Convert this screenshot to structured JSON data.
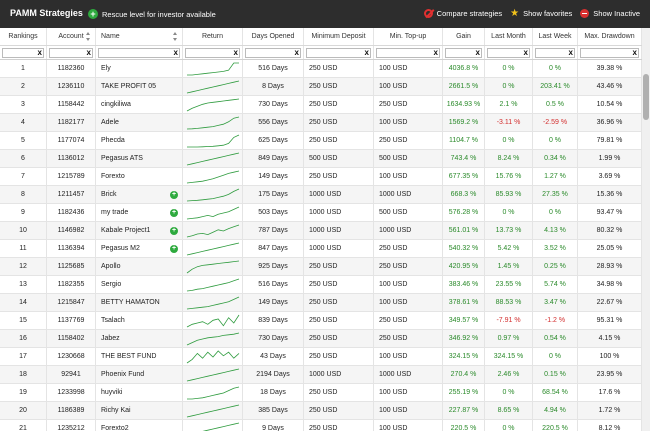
{
  "header": {
    "title": "PAMM Strategies",
    "rescue_label": "Rescue level for investor available",
    "compare_label": "Compare strategies",
    "favorites_label": "Show favorites",
    "inactive_label": "Show Inactive"
  },
  "columns": [
    "Rankings",
    "Account",
    "Name",
    "Return",
    "Days Opened",
    "Minimum Deposit",
    "Min. Top-up",
    "Gain",
    "Last Month",
    "Last Week",
    "Max. Drawdown"
  ],
  "filter_clear": "x",
  "colors": {
    "header_bg": "#2d2d2d",
    "positive": "#2a8a2a",
    "negative": "#d32f2f",
    "rescue_icon": "#2eaa3e",
    "spark": "#2e9b3e"
  },
  "rows": [
    {
      "rank": "1",
      "account": "1182360",
      "name": "Ely",
      "rescue": false,
      "days": "516 Days",
      "min_dep": "250 USD",
      "min_top": "100 USD",
      "gain": "4036.8 %",
      "month": "0 %",
      "week": "0 %",
      "dd": "39.38 %",
      "spark": [
        0,
        0,
        0.5,
        1,
        1.5,
        2,
        2.5,
        3,
        4,
        10,
        10
      ]
    },
    {
      "rank": "2",
      "account": "1236110",
      "name": "TAKE PROFIT 05",
      "rescue": false,
      "days": "8 Days",
      "min_dep": "250 USD",
      "min_top": "100 USD",
      "gain": "2661.5 %",
      "month": "0 %",
      "week": "203.41 %",
      "dd": "43.46 %",
      "spark": [
        0,
        1,
        2,
        3,
        4,
        5,
        6,
        7,
        8,
        9,
        10
      ]
    },
    {
      "rank": "3",
      "account": "1158442",
      "name": "cingkiliwa",
      "rescue": false,
      "days": "730 Days",
      "min_dep": "250 USD",
      "min_top": "250 USD",
      "gain": "1634.93 %",
      "month": "2.1 %",
      "week": "0.5 %",
      "dd": "10.54 %",
      "spark": [
        0,
        2,
        3.5,
        5,
        6,
        6.5,
        7,
        7.5,
        8,
        8.5,
        9
      ]
    },
    {
      "rank": "4",
      "account": "1182177",
      "name": "Adele",
      "rescue": false,
      "days": "556 Days",
      "min_dep": "250 USD",
      "min_top": "100 USD",
      "gain": "1569.2 %",
      "month": "-3.11 %",
      "week": "-2.59 %",
      "dd": "36.96 %",
      "spark": [
        0,
        0.2,
        0.5,
        1,
        1.5,
        2,
        3,
        4,
        6,
        9,
        10
      ]
    },
    {
      "rank": "5",
      "account": "1177074",
      "name": "Phecda",
      "rescue": false,
      "days": "625 Days",
      "min_dep": "250 USD",
      "min_top": "250 USD",
      "gain": "1104.7 %",
      "month": "0 %",
      "week": "0 %",
      "dd": "79.81 %",
      "spark": [
        0,
        0,
        0,
        0.2,
        0.4,
        0.6,
        1,
        1.5,
        3,
        8,
        10
      ]
    },
    {
      "rank": "6",
      "account": "1136012",
      "name": "Pegasus ATS",
      "rescue": false,
      "days": "849 Days",
      "min_dep": "500 USD",
      "min_top": "500 USD",
      "gain": "743.4 %",
      "month": "8.24 %",
      "week": "0.34 %",
      "dd": "1.99 %",
      "spark": [
        0,
        1,
        2,
        3,
        4,
        5,
        6,
        7,
        8,
        9,
        10
      ]
    },
    {
      "rank": "7",
      "account": "1215789",
      "name": "Forexto",
      "rescue": false,
      "days": "149 Days",
      "min_dep": "250 USD",
      "min_top": "100 USD",
      "gain": "677.35 %",
      "month": "15.76 %",
      "week": "1.27 %",
      "dd": "3.69 %",
      "spark": [
        0,
        0.5,
        1,
        1.5,
        2.5,
        3.5,
        5,
        6.5,
        8,
        9,
        10
      ]
    },
    {
      "rank": "8",
      "account": "1211457",
      "name": "Brick",
      "rescue": true,
      "days": "175 Days",
      "min_dep": "1000 USD",
      "min_top": "1000 USD",
      "gain": "668.3 %",
      "month": "85.93 %",
      "week": "27.35 %",
      "dd": "15.36 %",
      "spark": [
        0,
        0.3,
        0.6,
        1,
        1.5,
        2,
        3,
        4,
        5.5,
        8,
        10
      ]
    },
    {
      "rank": "9",
      "account": "1182436",
      "name": "my trade",
      "rescue": true,
      "days": "503 Days",
      "min_dep": "1000 USD",
      "min_top": "500 USD",
      "gain": "576.28 %",
      "month": "0 %",
      "week": "0 %",
      "dd": "93.47 %",
      "spark": [
        0,
        0.5,
        1,
        2,
        3,
        2,
        4,
        5,
        6,
        8,
        10
      ]
    },
    {
      "rank": "10",
      "account": "1146982",
      "name": "Kabale Project1",
      "rescue": true,
      "days": "787 Days",
      "min_dep": "1000 USD",
      "min_top": "1000 USD",
      "gain": "561.01 %",
      "month": "13.73 %",
      "week": "4.13 %",
      "dd": "80.32 %",
      "spark": [
        0,
        1,
        2.5,
        3,
        2,
        4,
        6,
        5,
        7,
        8.5,
        10
      ]
    },
    {
      "rank": "11",
      "account": "1136394",
      "name": "Pegasus M2",
      "rescue": true,
      "days": "847 Days",
      "min_dep": "1000 USD",
      "min_top": "250 USD",
      "gain": "540.32 %",
      "month": "5.42 %",
      "week": "3.52 %",
      "dd": "25.05 %",
      "spark": [
        0,
        1,
        2,
        3,
        4,
        5,
        6,
        7,
        8,
        9,
        10
      ]
    },
    {
      "rank": "12",
      "account": "1125685",
      "name": "Apollo",
      "rescue": false,
      "days": "925 Days",
      "min_dep": "250 USD",
      "min_top": "250 USD",
      "gain": "420.95 %",
      "month": "1.45 %",
      "week": "0.25 %",
      "dd": "28.93 %",
      "spark": [
        0,
        3,
        5,
        6,
        6.5,
        7,
        7.5,
        8,
        8.5,
        9,
        9.5
      ]
    },
    {
      "rank": "13",
      "account": "1182355",
      "name": "Sergio",
      "rescue": false,
      "days": "516 Days",
      "min_dep": "250 USD",
      "min_top": "100 USD",
      "gain": "383.46 %",
      "month": "23.55 %",
      "week": "5.74 %",
      "dd": "34.98 %",
      "spark": [
        0,
        0.5,
        1.5,
        2,
        3,
        4,
        5,
        6,
        7,
        8.5,
        10
      ]
    },
    {
      "rank": "14",
      "account": "1215847",
      "name": "BETTY HAMATON",
      "rescue": false,
      "days": "149 Days",
      "min_dep": "250 USD",
      "min_top": "100 USD",
      "gain": "378.61 %",
      "month": "88.53 %",
      "week": "3.47 %",
      "dd": "22.67 %",
      "spark": [
        0,
        0.5,
        1,
        1.5,
        2,
        3,
        4,
        5,
        6,
        8,
        10
      ]
    },
    {
      "rank": "15",
      "account": "1137769",
      "name": "Tsalach",
      "rescue": false,
      "days": "839 Days",
      "min_dep": "250 USD",
      "min_top": "250 USD",
      "gain": "349.57 %",
      "month": "-7.91 %",
      "week": "-1.2 %",
      "dd": "95.31 %",
      "spark": [
        0,
        2,
        3,
        4,
        2,
        5,
        6,
        1,
        7,
        3,
        9
      ]
    },
    {
      "rank": "16",
      "account": "1158402",
      "name": "Jabez",
      "rescue": false,
      "days": "730 Days",
      "min_dep": "250 USD",
      "min_top": "250 USD",
      "gain": "346.92 %",
      "month": "0.97 %",
      "week": "0.54 %",
      "dd": "4.15 %",
      "spark": [
        0,
        2,
        4,
        5,
        6,
        6.5,
        7,
        8,
        8.5,
        9,
        10
      ]
    },
    {
      "rank": "17",
      "account": "1230668",
      "name": "THE BEST FUND",
      "rescue": false,
      "days": "43 Days",
      "min_dep": "250 USD",
      "min_top": "100 USD",
      "gain": "324.15 %",
      "month": "324.15 %",
      "week": "0 %",
      "dd": "100 %",
      "spark": [
        0,
        3,
        8,
        4,
        9,
        5,
        10,
        6,
        9,
        4,
        8
      ]
    },
    {
      "rank": "18",
      "account": "92941",
      "name": "Phoenix Fund",
      "rescue": false,
      "days": "2194 Days",
      "min_dep": "1000 USD",
      "min_top": "1000 USD",
      "gain": "270.4 %",
      "month": "2.46 %",
      "week": "0.15 %",
      "dd": "23.95 %",
      "spark": [
        0,
        1,
        2,
        3,
        4,
        5,
        6,
        7,
        8,
        9,
        10
      ]
    },
    {
      "rank": "19",
      "account": "1233998",
      "name": "huyviki",
      "rescue": false,
      "days": "18 Days",
      "min_dep": "250 USD",
      "min_top": "100 USD",
      "gain": "255.19 %",
      "month": "0 %",
      "week": "68.54 %",
      "dd": "17.6 %",
      "spark": [
        0,
        0,
        0.5,
        1,
        2,
        3,
        4,
        5,
        7,
        9,
        10
      ]
    },
    {
      "rank": "20",
      "account": "1186389",
      "name": "Richy Kai",
      "rescue": false,
      "days": "385 Days",
      "min_dep": "250 USD",
      "min_top": "100 USD",
      "gain": "227.87 %",
      "month": "8.65 %",
      "week": "4.94 %",
      "dd": "1.72 %",
      "spark": [
        0,
        1,
        2,
        3,
        4,
        5,
        6,
        7,
        8,
        9,
        10
      ]
    },
    {
      "rank": "21",
      "account": "1235212",
      "name": "Forexto2",
      "rescue": false,
      "days": "9 Days",
      "min_dep": "250 USD",
      "min_top": "100 USD",
      "gain": "220.5 %",
      "month": "0 %",
      "week": "220.5 %",
      "dd": "8.12 %",
      "spark": [
        0,
        1,
        2,
        3,
        4,
        5,
        6,
        7,
        8,
        9,
        10
      ]
    }
  ]
}
